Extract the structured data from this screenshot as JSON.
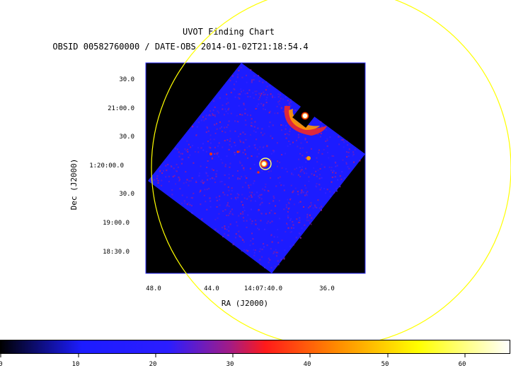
{
  "title": "UVOT Finding Chart",
  "subtitle": "OBSID 00582760000 / DATE-OBS 2014-01-02T21:18:54.4",
  "chart_data": {
    "type": "heatmap",
    "title": "UVOT Finding Chart",
    "subtitle": "OBSID 00582760000 / DATE-OBS 2014-01-02T21:18:54.4",
    "xlabel": "RA (J2000)",
    "ylabel": "Dec (J2000)",
    "x_ticks": [
      "48.0",
      "44.0",
      "14:07:40.0",
      "36.0"
    ],
    "y_ticks": [
      "30.0",
      "21:00.0",
      "30.0",
      "1:20:00.0",
      "30.0",
      "19:00.0",
      "18:30.0"
    ],
    "colorbar": {
      "ticks": [
        "0",
        "10",
        "20",
        "30",
        "40",
        "50",
        "60"
      ],
      "range": [
        0,
        65
      ],
      "colormap": [
        "#000000",
        "#1c1cff",
        "#7a1ea8",
        "#ff1a1a",
        "#ff9900",
        "#ffff00",
        "#ffffff"
      ]
    },
    "overlays": [
      {
        "shape": "large-circle",
        "color": "#ffff00"
      },
      {
        "shape": "small-circle",
        "color": "#ffff00"
      }
    ],
    "sources": [
      {
        "name": "bright-source",
        "level": 65
      },
      {
        "name": "target-source",
        "level": 65
      },
      {
        "name": "faint-source",
        "level": 45
      }
    ]
  },
  "colors": {
    "background": "#000000",
    "field": "#1c1cff",
    "overlay": "#ffff00"
  }
}
